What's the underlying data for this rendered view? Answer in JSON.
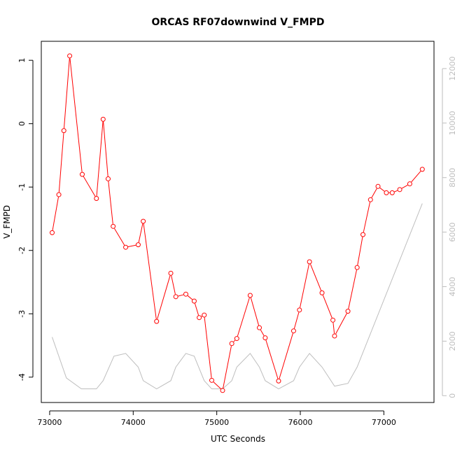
{
  "chart_data": {
    "type": "line",
    "title": "ORCAS RF07downwind V_FMPD",
    "xlabel": "UTC Seconds",
    "ylabel": "V_FMPD",
    "xlim": [
      72900,
      77600
    ],
    "ylim": [
      -4.4,
      1.3
    ],
    "y2lim": [
      -250,
      13000
    ],
    "x_ticks": [
      73000,
      74000,
      75000,
      76000,
      77000
    ],
    "y_ticks": [
      -4,
      -3,
      -2,
      -1,
      0,
      1
    ],
    "y2_ticks": [
      0,
      2000,
      4000,
      6000,
      8000,
      10000,
      12000
    ],
    "grid": false,
    "colors": {
      "primary": "#ff0000",
      "secondary": "#bebebe",
      "axis": "#000000"
    },
    "series": [
      {
        "axis": "left",
        "marker": "open-circle",
        "x": [
          73030,
          73110,
          73170,
          73240,
          73390,
          73560,
          73640,
          73700,
          73760,
          73910,
          74060,
          74120,
          74280,
          74450,
          74510,
          74630,
          74730,
          74790,
          74850,
          74940,
          75070,
          75180,
          75240,
          75400,
          75510,
          75580,
          75740,
          75920,
          75990,
          76110,
          76260,
          76390,
          76410,
          76570,
          76680,
          76750,
          76840,
          76930,
          77030,
          77100,
          77190,
          77310,
          77460
        ],
        "values": [
          -1.72,
          -1.12,
          -0.11,
          1.07,
          -0.8,
          -1.18,
          0.07,
          -0.87,
          -1.62,
          -1.95,
          -1.91,
          -1.54,
          -3.12,
          -2.36,
          -2.73,
          -2.69,
          -2.8,
          -3.06,
          -3.02,
          -4.05,
          -4.21,
          -3.47,
          -3.39,
          -2.71,
          -3.22,
          -3.38,
          -4.06,
          -3.27,
          -2.94,
          -2.18,
          -2.67,
          -3.1,
          -3.35,
          -2.96,
          -2.27,
          -1.75,
          -1.2,
          -0.99,
          -1.09,
          -1.09,
          -1.04,
          -0.95,
          -0.72
        ]
      },
      {
        "axis": "right",
        "x": [
          73030,
          73200,
          73380,
          73560,
          73640,
          73770,
          73910,
          74060,
          74120,
          74280,
          74450,
          74510,
          74630,
          74730,
          74850,
          74940,
          75070,
          75180,
          75240,
          75400,
          75510,
          75580,
          75740,
          75920,
          75990,
          76110,
          76260,
          76410,
          76570,
          76680,
          77460
        ],
        "values": [
          2150,
          650,
          250,
          250,
          550,
          1450,
          1550,
          1050,
          550,
          250,
          550,
          1050,
          1550,
          1450,
          550,
          250,
          250,
          550,
          1050,
          1550,
          1050,
          550,
          250,
          550,
          1050,
          1550,
          1050,
          350,
          450,
          1050,
          7050
        ]
      }
    ]
  }
}
